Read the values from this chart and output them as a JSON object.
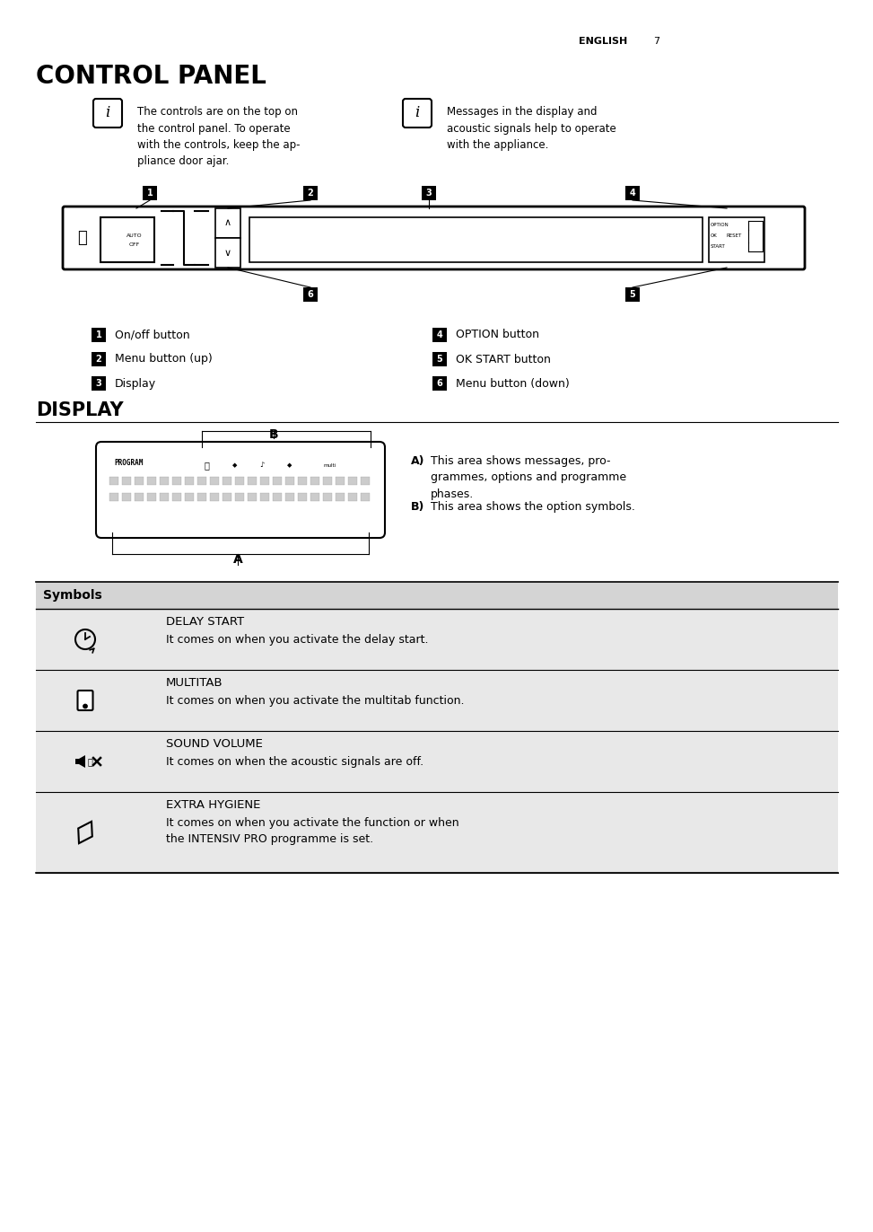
{
  "page_header_text": "ENGLISH",
  "page_number": "7",
  "section1_title": "CONTROL PANEL",
  "info1_text": "The controls are on the top on\nthe control panel. To operate\nwith the controls, keep the ap-\npliance door ajar.",
  "info2_text": "Messages in the display and\nacoustic signals help to operate\nwith the appliance.",
  "legend_left": [
    [
      "1",
      "On/off button"
    ],
    [
      "2",
      "Menu button (up)"
    ],
    [
      "3",
      "Display"
    ]
  ],
  "legend_right": [
    [
      "4",
      "OPTION button"
    ],
    [
      "5",
      "OK START button"
    ],
    [
      "6",
      "Menu button (down)"
    ]
  ],
  "section2_title": "DISPLAY",
  "desc_A": "This area shows messages, pro-\ngrammes, options and programme\nphases.",
  "desc_B": "This area shows the option symbols.",
  "symbols_header": "Symbols",
  "symbols": [
    {
      "icon": "clock",
      "title": "DELAY START",
      "desc": "It comes on when you activate the delay start."
    },
    {
      "icon": "tablet",
      "title": "MULTITAB",
      "desc": "It comes on when you activate the multitab function."
    },
    {
      "icon": "sound",
      "title": "SOUND VOLUME",
      "desc": "It comes on when the acoustic signals are off."
    },
    {
      "icon": "hygiene",
      "title": "EXTRA HYGIENE",
      "desc": "It comes on when you activate the function or when\nthe INTENSIV PRO programme is set."
    }
  ],
  "bg_color": "#ffffff",
  "text_color": "#000000",
  "gray_row_color": "#e8e8e8"
}
